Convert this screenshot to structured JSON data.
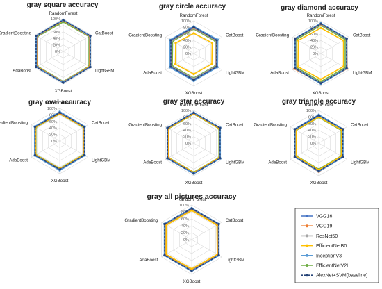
{
  "axes": [
    "RandomForest",
    "CatBoost",
    "LightGBM",
    "XGBoost",
    "AdaBoost",
    "GradientBoosting"
  ],
  "ticks": [
    "0%",
    "20%",
    "40%",
    "60%",
    "80%",
    "100%"
  ],
  "legend_series": [
    {
      "name": "VGG16",
      "color": "#4472c4",
      "dash": "solid"
    },
    {
      "name": "VGG19",
      "color": "#ed7d31",
      "dash": "solid"
    },
    {
      "name": "ResNet50",
      "color": "#a5a5a5",
      "dash": "solid"
    },
    {
      "name": "EfficientNetB0",
      "color": "#ffc000",
      "dash": "solid"
    },
    {
      "name": "InceptionV3",
      "color": "#5b9bd5",
      "dash": "solid"
    },
    {
      "name": "EfficientNetV2L",
      "color": "#70ad47",
      "dash": "solid"
    },
    {
      "name": "AlexNet+SVM(baseline)",
      "color": "#264478",
      "dash": "dashed"
    }
  ],
  "chart_data": [
    {
      "type": "radar",
      "title": "gray square accuracy",
      "categories": [
        "RandomForest",
        "CatBoost",
        "LightGBM",
        "XGBoost",
        "AdaBoost",
        "GradientBoosting"
      ],
      "rlim": [
        0,
        100
      ],
      "series": [
        {
          "name": "VGG16",
          "values": [
            96,
            95,
            95,
            95,
            95,
            95
          ]
        },
        {
          "name": "VGG19",
          "values": [
            95,
            94,
            94,
            94,
            94,
            94
          ]
        },
        {
          "name": "ResNet50",
          "values": [
            94,
            93,
            93,
            93,
            93,
            93
          ]
        },
        {
          "name": "EfficientNetB0",
          "values": [
            94,
            94,
            93,
            94,
            93,
            94
          ]
        },
        {
          "name": "InceptionV3",
          "values": [
            97,
            96,
            96,
            96,
            96,
            96
          ]
        },
        {
          "name": "EfficientNetV2L",
          "values": [
            90,
            91,
            91,
            92,
            91,
            91
          ]
        },
        {
          "name": "AlexNet+SVM(baseline)",
          "values": [
            96,
            96,
            96,
            96,
            96,
            96
          ]
        }
      ]
    },
    {
      "type": "radar",
      "title": "gray circle accuracy",
      "categories": [
        "RandomForest",
        "CatBoost",
        "LightGBM",
        "XGBoost",
        "AdaBoost",
        "GradientBoosting"
      ],
      "rlim": [
        0,
        100
      ],
      "series": [
        {
          "name": "VGG16",
          "values": [
            80,
            82,
            81,
            80,
            82,
            81
          ]
        },
        {
          "name": "VGG19",
          "values": [
            79,
            81,
            80,
            80,
            81,
            80
          ]
        },
        {
          "name": "ResNet50",
          "values": [
            77,
            79,
            78,
            77,
            79,
            78
          ]
        },
        {
          "name": "EfficientNetB0",
          "values": [
            62,
            65,
            64,
            63,
            65,
            64
          ]
        },
        {
          "name": "InceptionV3",
          "values": [
            83,
            85,
            84,
            84,
            85,
            84
          ]
        },
        {
          "name": "EfficientNetV2L",
          "values": [
            75,
            76,
            76,
            75,
            76,
            75
          ]
        },
        {
          "name": "AlexNet+SVM(baseline)",
          "values": [
            81,
            81,
            81,
            81,
            81,
            81
          ]
        }
      ]
    },
    {
      "type": "radar",
      "title": "gray diamond accuracy",
      "categories": [
        "RandomForest",
        "CatBoost",
        "LightGBM",
        "XGBoost",
        "AdaBoost",
        "GradientBoosting"
      ],
      "rlim": [
        0,
        100
      ],
      "series": [
        {
          "name": "VGG16",
          "values": [
            92,
            91,
            91,
            92,
            91,
            91
          ]
        },
        {
          "name": "VGG19",
          "values": [
            90,
            92,
            93,
            92,
            94,
            92
          ]
        },
        {
          "name": "ResNet50",
          "values": [
            89,
            90,
            90,
            90,
            89,
            90
          ]
        },
        {
          "name": "EfficientNetB0",
          "values": [
            78,
            80,
            80,
            79,
            81,
            80
          ]
        },
        {
          "name": "InceptionV3",
          "values": [
            93,
            92,
            92,
            93,
            92,
            92
          ]
        },
        {
          "name": "EfficientNetV2L",
          "values": [
            86,
            86,
            86,
            86,
            86,
            86
          ]
        },
        {
          "name": "AlexNet+SVM(baseline)",
          "values": [
            91,
            91,
            91,
            91,
            91,
            91
          ]
        }
      ]
    },
    {
      "type": "radar",
      "title": "gray oval accuracy",
      "categories": [
        "RandomForest",
        "CatBoost",
        "LightGBM",
        "XGBoost",
        "AdaBoost",
        "GradientBoosting"
      ],
      "rlim": [
        0,
        100
      ],
      "series": [
        {
          "name": "VGG16",
          "values": [
            88,
            88,
            88,
            88,
            88,
            88
          ]
        },
        {
          "name": "VGG19",
          "values": [
            86,
            87,
            87,
            87,
            87,
            87
          ]
        },
        {
          "name": "ResNet50",
          "values": [
            85,
            86,
            86,
            86,
            86,
            86
          ]
        },
        {
          "name": "EfficientNetB0",
          "values": [
            84,
            85,
            85,
            85,
            85,
            85
          ]
        },
        {
          "name": "InceptionV3",
          "values": [
            90,
            89,
            89,
            90,
            89,
            89
          ]
        },
        {
          "name": "EfficientNetV2L",
          "values": [
            83,
            84,
            84,
            84,
            84,
            84
          ]
        },
        {
          "name": "AlexNet+SVM(baseline)",
          "values": [
            87,
            87,
            87,
            87,
            87,
            87
          ]
        }
      ]
    },
    {
      "type": "radar",
      "title": "gray star accuracy",
      "categories": [
        "RandomForest",
        "CatBoost",
        "LightGBM",
        "XGBoost",
        "AdaBoost",
        "GradientBoosting"
      ],
      "rlim": [
        0,
        100
      ],
      "series": [
        {
          "name": "VGG16",
          "values": [
            93,
            93,
            93,
            93,
            93,
            93
          ]
        },
        {
          "name": "VGG19",
          "values": [
            92,
            92,
            92,
            92,
            92,
            92
          ]
        },
        {
          "name": "ResNet50",
          "values": [
            91,
            91,
            91,
            91,
            91,
            91
          ]
        },
        {
          "name": "EfficientNetB0",
          "values": [
            90,
            90,
            90,
            90,
            90,
            90
          ]
        },
        {
          "name": "InceptionV3",
          "values": [
            94,
            94,
            94,
            94,
            94,
            94
          ]
        },
        {
          "name": "EfficientNetV2L",
          "values": [
            89,
            89,
            89,
            89,
            89,
            89
          ]
        },
        {
          "name": "AlexNet+SVM(baseline)",
          "values": [
            93,
            93,
            93,
            93,
            93,
            93
          ]
        }
      ]
    },
    {
      "type": "radar",
      "title": "gray triangle accuracy",
      "categories": [
        "RandomForest",
        "CatBoost",
        "LightGBM",
        "XGBoost",
        "AdaBoost",
        "GradientBoosting"
      ],
      "rlim": [
        0,
        100
      ],
      "series": [
        {
          "name": "VGG16",
          "values": [
            84,
            85,
            84,
            86,
            84,
            84
          ]
        },
        {
          "name": "VGG19",
          "values": [
            86,
            86,
            85,
            88,
            85,
            85
          ]
        },
        {
          "name": "ResNet50",
          "values": [
            85,
            86,
            85,
            86,
            84,
            85
          ]
        },
        {
          "name": "EfficientNetB0",
          "values": [
            80,
            81,
            80,
            82,
            80,
            80
          ]
        },
        {
          "name": "InceptionV3",
          "values": [
            87,
            86,
            86,
            87,
            85,
            86
          ]
        },
        {
          "name": "EfficientNetV2L",
          "values": [
            79,
            79,
            79,
            80,
            79,
            79
          ]
        },
        {
          "name": "AlexNet+SVM(baseline)",
          "values": [
            85,
            85,
            85,
            85,
            85,
            85
          ]
        }
      ]
    },
    {
      "type": "radar",
      "title": "gray all pictures accuracy",
      "categories": [
        "RandomForest",
        "CatBoost",
        "LightGBM",
        "XGBoost",
        "AdaBoost",
        "GradientBoosting"
      ],
      "rlim": [
        0,
        100
      ],
      "series": [
        {
          "name": "VGG16",
          "values": [
            90,
            90,
            90,
            90,
            90,
            90
          ]
        },
        {
          "name": "VGG19",
          "values": [
            89,
            89,
            89,
            89,
            89,
            89
          ]
        },
        {
          "name": "ResNet50",
          "values": [
            88,
            88,
            88,
            88,
            88,
            88
          ]
        },
        {
          "name": "EfficientNetB0",
          "values": [
            84,
            84,
            85,
            84,
            85,
            84
          ]
        },
        {
          "name": "InceptionV3",
          "values": [
            91,
            91,
            91,
            91,
            91,
            91
          ]
        },
        {
          "name": "EfficientNetV2L",
          "values": [
            86,
            86,
            86,
            86,
            86,
            86
          ]
        },
        {
          "name": "AlexNet+SVM(baseline)",
          "values": [
            90,
            90,
            90,
            90,
            90,
            90
          ]
        }
      ]
    }
  ]
}
